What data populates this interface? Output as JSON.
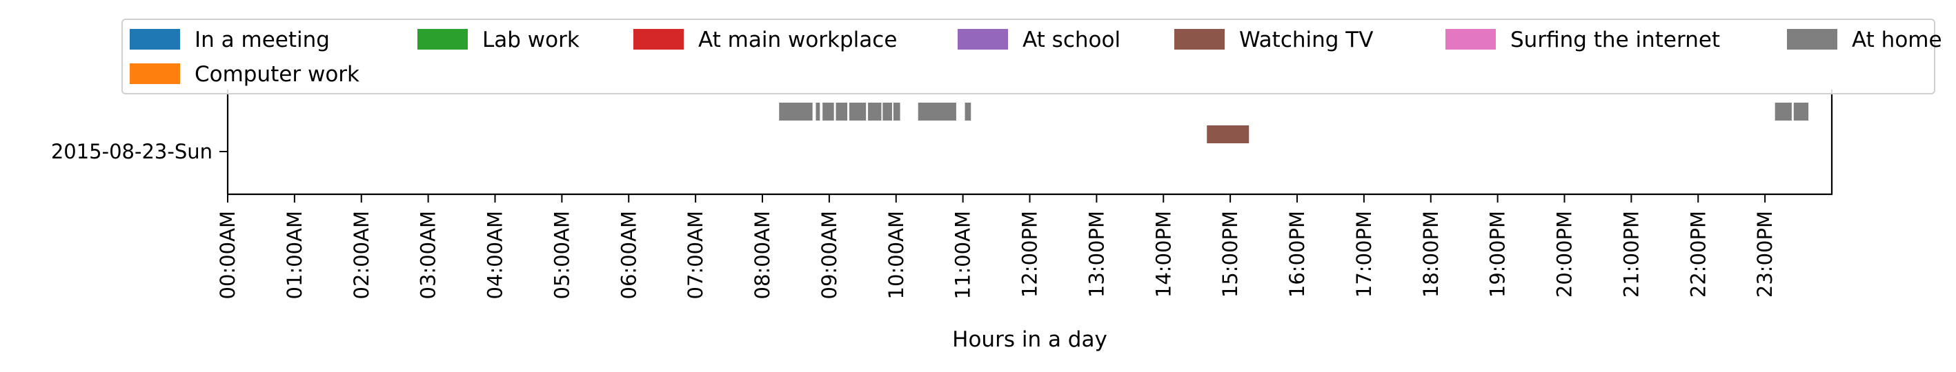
{
  "chart_data": {
    "type": "timeline",
    "xlabel": "Hours in a day",
    "xlim": [
      0,
      24
    ],
    "x_ticks": [
      {
        "value": 0,
        "label": "00:00AM"
      },
      {
        "value": 1,
        "label": "01:00AM"
      },
      {
        "value": 2,
        "label": "02:00AM"
      },
      {
        "value": 3,
        "label": "03:00AM"
      },
      {
        "value": 4,
        "label": "04:00AM"
      },
      {
        "value": 5,
        "label": "05:00AM"
      },
      {
        "value": 6,
        "label": "06:00AM"
      },
      {
        "value": 7,
        "label": "07:00AM"
      },
      {
        "value": 8,
        "label": "08:00AM"
      },
      {
        "value": 9,
        "label": "09:00AM"
      },
      {
        "value": 10,
        "label": "10:00AM"
      },
      {
        "value": 11,
        "label": "11:00AM"
      },
      {
        "value": 12,
        "label": "12:00PM"
      },
      {
        "value": 13,
        "label": "13:00PM"
      },
      {
        "value": 14,
        "label": "14:00PM"
      },
      {
        "value": 15,
        "label": "15:00PM"
      },
      {
        "value": 16,
        "label": "16:00PM"
      },
      {
        "value": 17,
        "label": "17:00PM"
      },
      {
        "value": 18,
        "label": "18:00PM"
      },
      {
        "value": 19,
        "label": "19:00PM"
      },
      {
        "value": 20,
        "label": "20:00PM"
      },
      {
        "value": 21,
        "label": "21:00PM"
      },
      {
        "value": 22,
        "label": "22:00PM"
      },
      {
        "value": 23,
        "label": "23:00PM"
      }
    ],
    "y_categories": [
      "2015-08-23-Sun"
    ],
    "legend": {
      "placement": "top",
      "columns": 7
    },
    "series": [
      {
        "name": "In a meeting",
        "color": "#1f77b4",
        "segments": []
      },
      {
        "name": "Computer work",
        "color": "#ff7f0e",
        "segments": []
      },
      {
        "name": "Lab work",
        "color": "#2ca02c",
        "segments": []
      },
      {
        "name": "At main workplace",
        "color": "#d62728",
        "segments": []
      },
      {
        "name": "At school",
        "color": "#9467bd",
        "segments": []
      },
      {
        "name": "Watching TV",
        "color": "#8c564b",
        "segments": [
          {
            "day": "2015-08-23-Sun",
            "start": 14.65,
            "end": 15.28
          }
        ]
      },
      {
        "name": "Surfing the internet",
        "color": "#e377c2",
        "segments": []
      },
      {
        "name": "At home",
        "color": "#7f7f7f",
        "segments": [
          {
            "day": "2015-08-23-Sun",
            "start": 8.25,
            "end": 8.75
          },
          {
            "day": "2015-08-23-Sun",
            "start": 8.8,
            "end": 8.86
          },
          {
            "day": "2015-08-23-Sun",
            "start": 8.9,
            "end": 9.07
          },
          {
            "day": "2015-08-23-Sun",
            "start": 9.1,
            "end": 9.27
          },
          {
            "day": "2015-08-23-Sun",
            "start": 9.3,
            "end": 9.55
          },
          {
            "day": "2015-08-23-Sun",
            "start": 9.58,
            "end": 9.78
          },
          {
            "day": "2015-08-23-Sun",
            "start": 9.8,
            "end": 9.94
          },
          {
            "day": "2015-08-23-Sun",
            "start": 9.96,
            "end": 10.06
          },
          {
            "day": "2015-08-23-Sun",
            "start": 10.33,
            "end": 10.9
          },
          {
            "day": "2015-08-23-Sun",
            "start": 11.03,
            "end": 11.12
          },
          {
            "day": "2015-08-23-Sun",
            "start": 23.15,
            "end": 23.4
          },
          {
            "day": "2015-08-23-Sun",
            "start": 23.43,
            "end": 23.65
          }
        ]
      }
    ]
  }
}
